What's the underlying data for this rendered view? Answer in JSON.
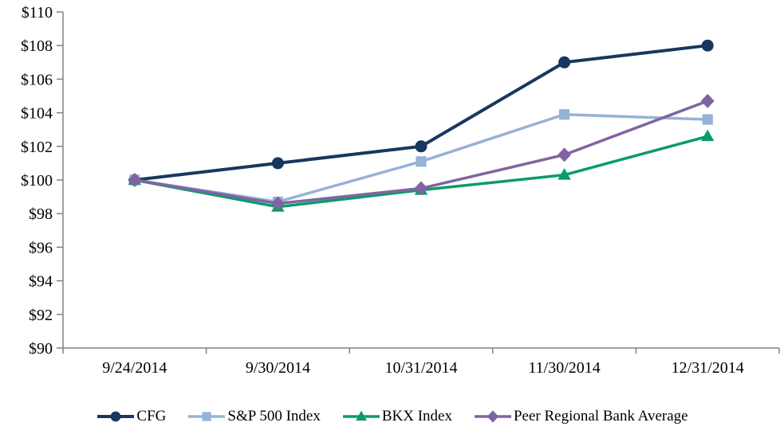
{
  "chart_data": {
    "type": "line",
    "title": "",
    "xlabel": "",
    "ylabel": "",
    "categories": [
      "9/24/2014",
      "9/30/2014",
      "10/31/2014",
      "11/30/2014",
      "12/31/2014"
    ],
    "series": [
      {
        "name": "CFG",
        "marker": "circle",
        "color": "#17375E",
        "values": [
          100,
          101.0,
          102.0,
          107.0,
          108.0
        ]
      },
      {
        "name": "S&P 500 Index",
        "marker": "square",
        "color": "#95B3D7",
        "values": [
          100,
          98.7,
          101.1,
          103.9,
          103.6
        ]
      },
      {
        "name": "BKX Index",
        "marker": "triangle",
        "color": "#0B9B69",
        "values": [
          100,
          98.4,
          99.4,
          100.3,
          102.6
        ]
      },
      {
        "name": "Peer Regional Bank Average",
        "marker": "diamond",
        "color": "#8064A2",
        "values": [
          100,
          98.6,
          99.5,
          101.5,
          104.7
        ]
      }
    ],
    "ylim": [
      90,
      110
    ],
    "ytick_step": 2,
    "ytick_prefix": "$",
    "y_tick_labels": [
      "$90",
      "$92",
      "$94",
      "$96",
      "$98",
      "$100",
      "$102",
      "$104",
      "$106",
      "$108",
      "$110"
    ],
    "grid": false,
    "legend_position": "bottom",
    "axis_color": "#808080",
    "text_color": "#000000"
  }
}
